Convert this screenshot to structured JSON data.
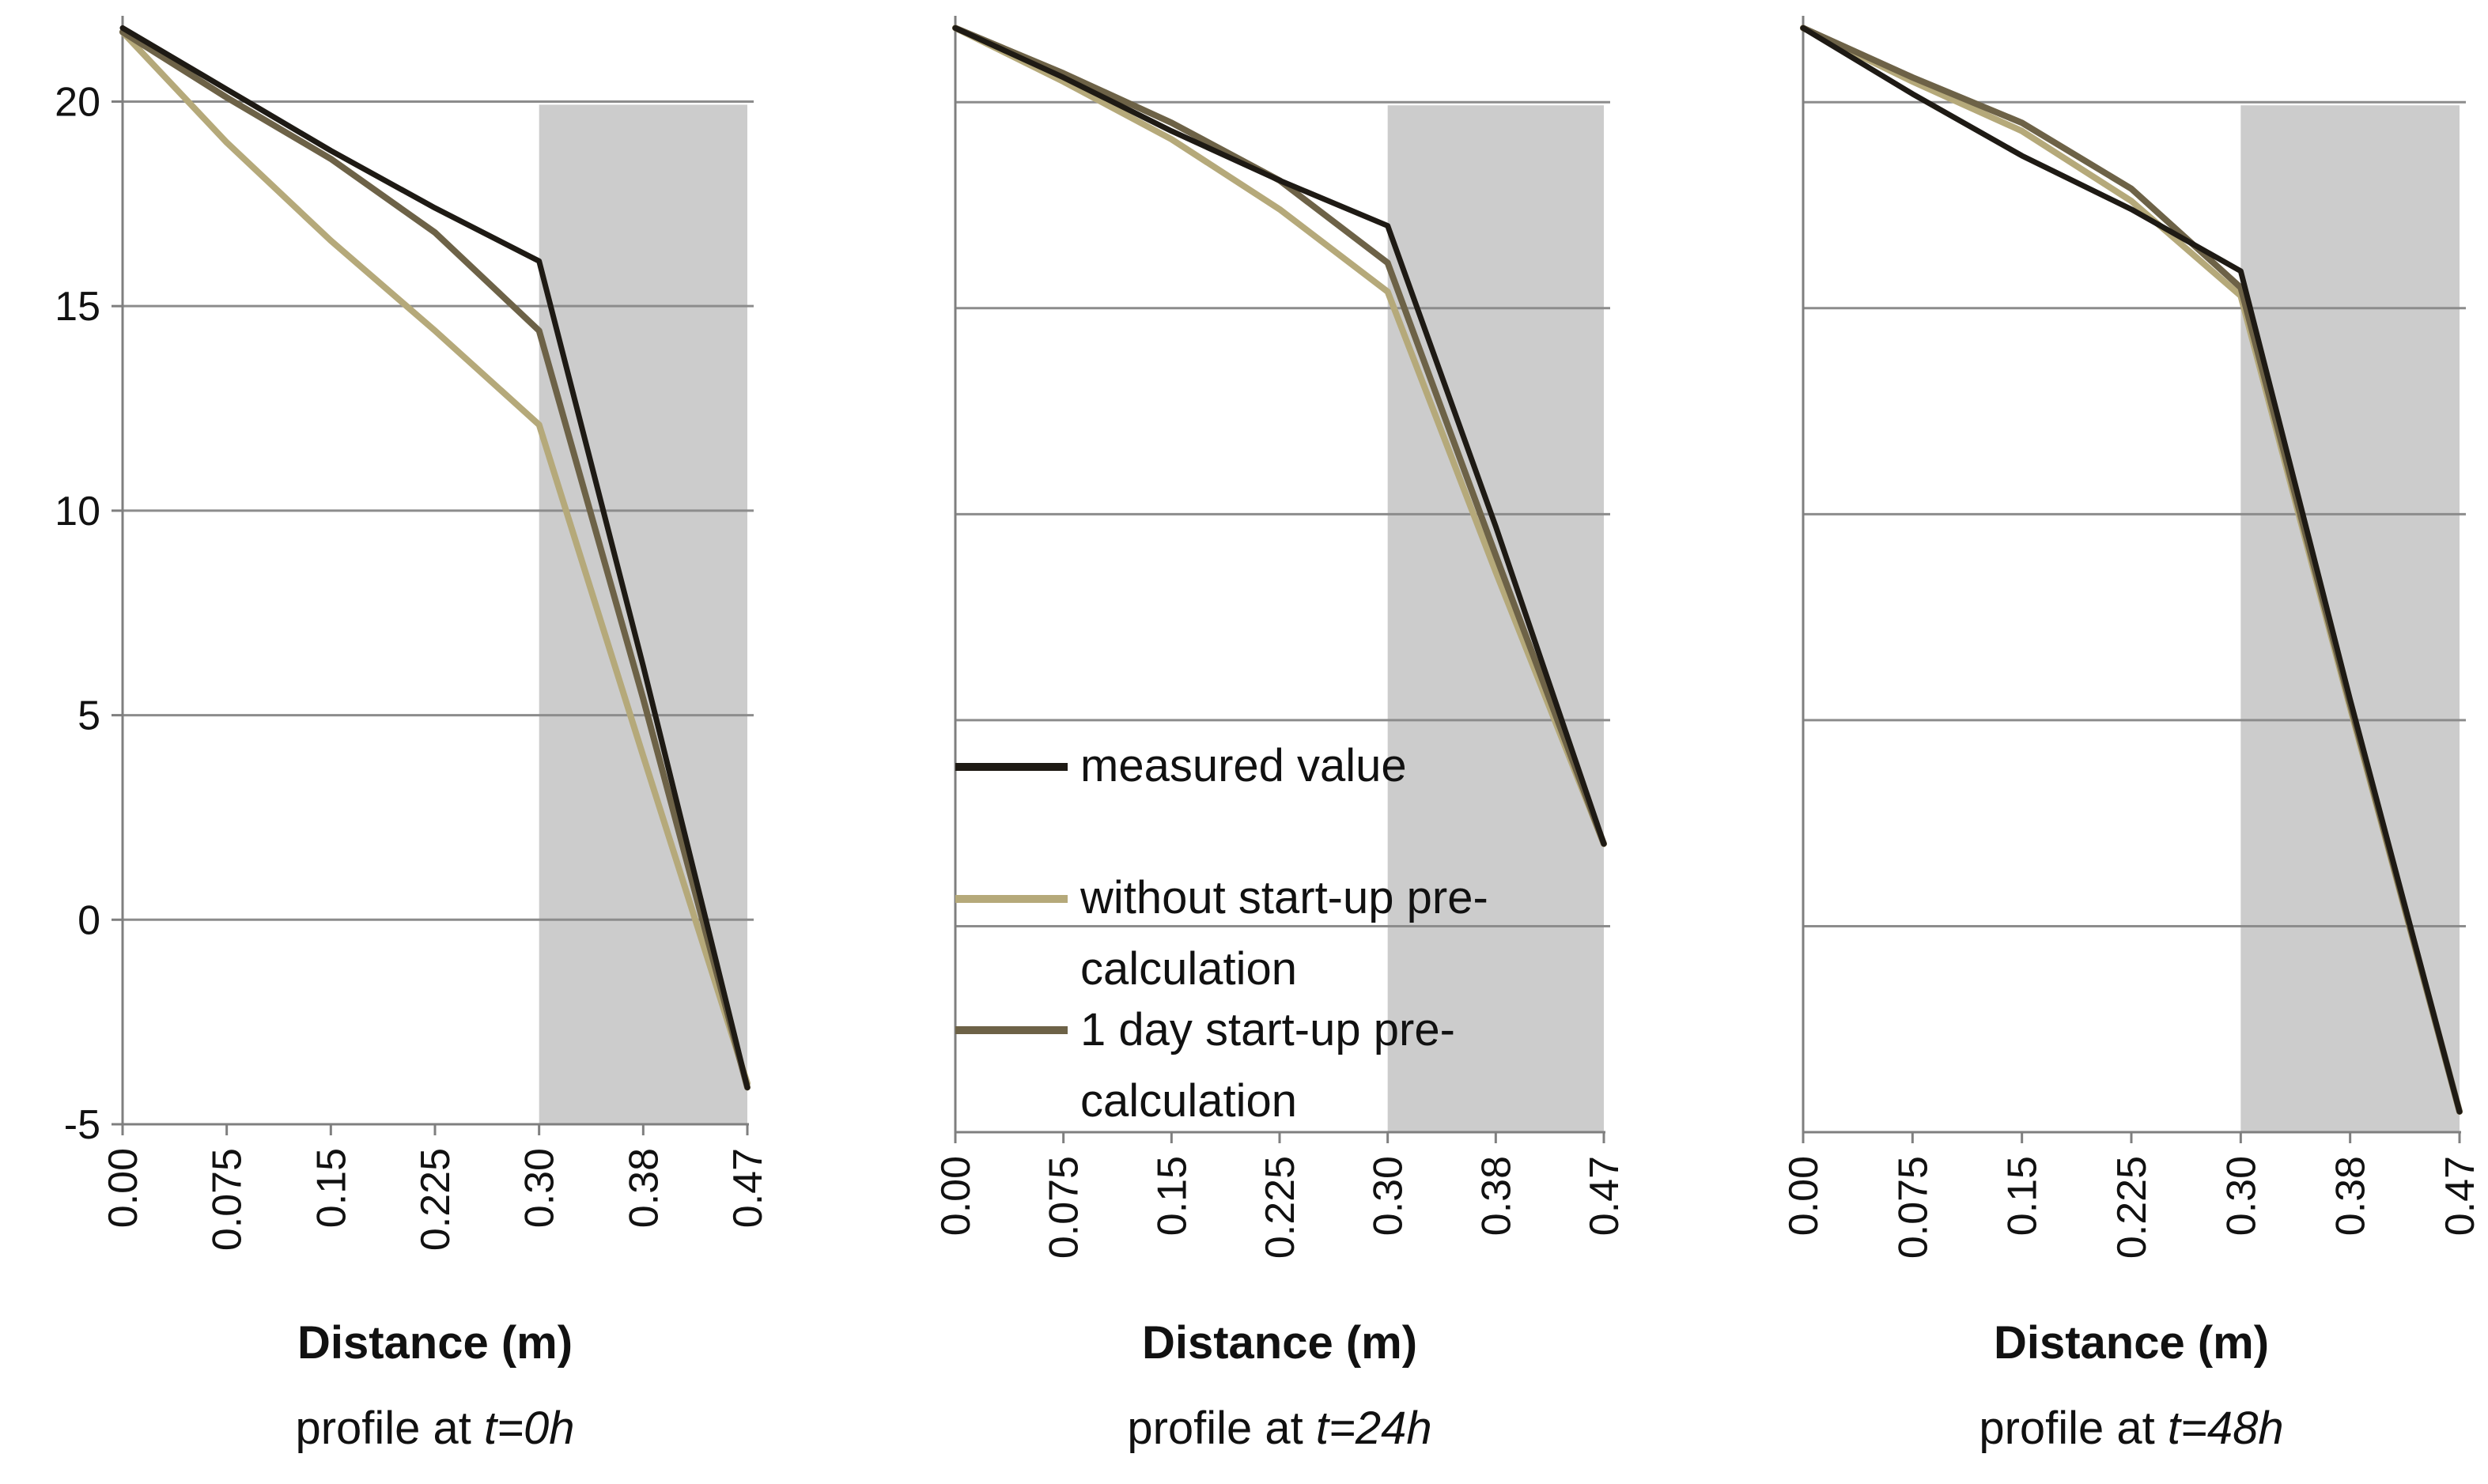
{
  "colors": {
    "measured": "#1e1a14",
    "without": "#b5a97a",
    "one_day": "#6d6247",
    "shade": "#cccccc",
    "grid": "#8c8c8c",
    "axis": "#7f7f7f"
  },
  "legend": {
    "items": [
      {
        "series": "measured",
        "lines": [
          "measured value"
        ]
      },
      {
        "series": "without",
        "lines": [
          "without start-up pre-",
          "calculation"
        ]
      },
      {
        "series": "one_day",
        "lines": [
          "1 day start-up pre-",
          "calculation"
        ]
      }
    ]
  },
  "chart_data": [
    {
      "type": "line",
      "panel": "t0",
      "caption_prefix": "profile at ",
      "caption_time": "t=0h",
      "xlabel": "Distance (m)",
      "categories": [
        "0.00",
        "0.075",
        "0.15",
        "0.225",
        "0.30",
        "0.38",
        "0.47"
      ],
      "ylim": [
        -5,
        22
      ],
      "yticks": [
        -5,
        0,
        5,
        10,
        15,
        20
      ],
      "show_yticks": true,
      "shaded_category_range": [
        "0.30",
        "0.47"
      ],
      "series": [
        {
          "key": "measured",
          "name": "measured value",
          "values": [
            21.8,
            20.3,
            18.8,
            17.4,
            16.1,
            6.2,
            -4.1
          ]
        },
        {
          "key": "without",
          "name": "without start-up pre-calculation",
          "values": [
            21.7,
            19.0,
            16.6,
            14.4,
            12.1,
            4.0,
            -4.0
          ]
        },
        {
          "key": "one_day",
          "name": "1 day start-up pre-calculation",
          "values": [
            21.7,
            20.1,
            18.6,
            16.8,
            14.4,
            5.4,
            -4.1
          ]
        }
      ]
    },
    {
      "type": "line",
      "panel": "t24",
      "caption_prefix": "profile at ",
      "caption_time": "t=24h",
      "xlabel": "Distance (m)",
      "categories": [
        "0.00",
        "0.075",
        "0.15",
        "0.225",
        "0.30",
        "0.38",
        "0.47"
      ],
      "ylim": [
        -5,
        22
      ],
      "yticks": [
        -5,
        0,
        5,
        10,
        15,
        20
      ],
      "show_yticks": false,
      "shaded_category_range": [
        "0.30",
        "0.47"
      ],
      "series": [
        {
          "key": "measured",
          "name": "measured value",
          "values": [
            21.8,
            20.6,
            19.3,
            18.1,
            17.0,
            9.7,
            2.0
          ]
        },
        {
          "key": "without",
          "name": "without start-up pre-calculation",
          "values": [
            21.8,
            20.5,
            19.1,
            17.4,
            15.4,
            8.6,
            2.0
          ]
        },
        {
          "key": "one_day",
          "name": "1 day start-up pre-calculation",
          "values": [
            21.8,
            20.7,
            19.5,
            18.1,
            16.1,
            9.0,
            2.0
          ]
        }
      ]
    },
    {
      "type": "line",
      "panel": "t48",
      "caption_prefix": "profile at ",
      "caption_time": "t=48h",
      "xlabel": "Distance (m)",
      "categories": [
        "0.00",
        "0.075",
        "0.15",
        "0.225",
        "0.30",
        "0.38",
        "0.47"
      ],
      "ylim": [
        -5,
        22
      ],
      "yticks": [
        -5,
        0,
        5,
        10,
        15,
        20
      ],
      "show_yticks": false,
      "shaded_category_range": [
        "0.30",
        "0.47"
      ],
      "series": [
        {
          "key": "measured",
          "name": "measured value",
          "values": [
            21.8,
            20.2,
            18.7,
            17.4,
            15.9,
            5.5,
            -4.5
          ]
        },
        {
          "key": "without",
          "name": "without start-up pre-calculation",
          "values": [
            21.8,
            20.5,
            19.3,
            17.6,
            15.3,
            5.3,
            -4.5
          ]
        },
        {
          "key": "one_day",
          "name": "1 day start-up pre-calculation",
          "values": [
            21.8,
            20.6,
            19.5,
            17.9,
            15.5,
            5.4,
            -4.5
          ]
        }
      ]
    }
  ]
}
